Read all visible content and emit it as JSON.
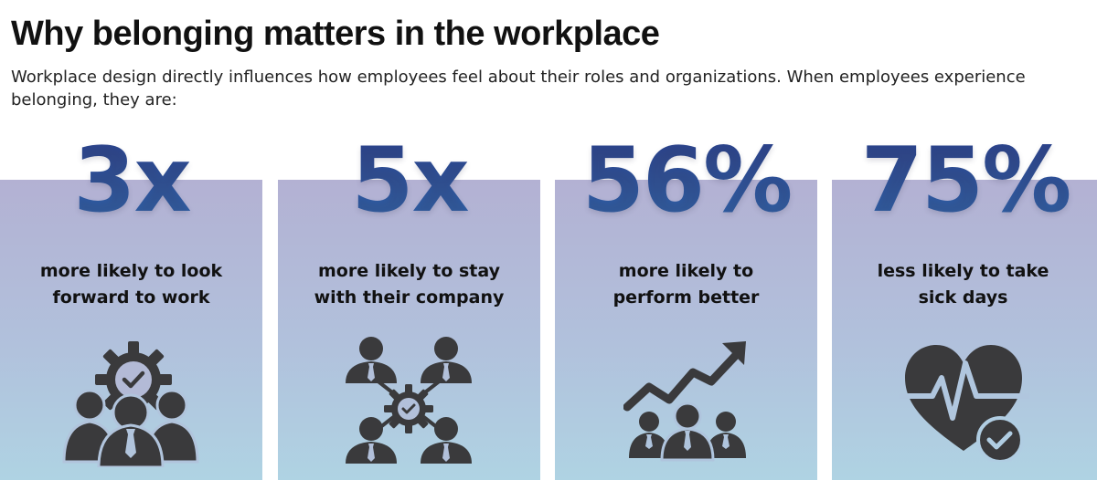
{
  "header": {
    "title": "Why belonging matters in the workplace",
    "subtitle": "Workplace design directly influences how employees feel about their roles and organizations. When employees experience belonging, they are:"
  },
  "stats": [
    {
      "value": "3x",
      "line1": "more likely to look",
      "line2": "forward to work",
      "icon": "team-gear-icon"
    },
    {
      "value": "5x",
      "line1": "more likely to stay",
      "line2": "with their company",
      "icon": "people-gear-network-icon"
    },
    {
      "value": "56%",
      "line1": "more likely to",
      "line2": "perform better",
      "icon": "growth-chart-team-icon"
    },
    {
      "value": "75%",
      "line1": "less likely to take",
      "line2": "sick days",
      "icon": "heart-health-check-icon"
    }
  ],
  "colors": {
    "stat_gradient_top": "#2a3c86",
    "stat_gradient_bottom": "#2f67ad",
    "card_top": "#b3b1d3",
    "card_bottom": "#afd3e3",
    "icon": "#3a3a3c"
  }
}
